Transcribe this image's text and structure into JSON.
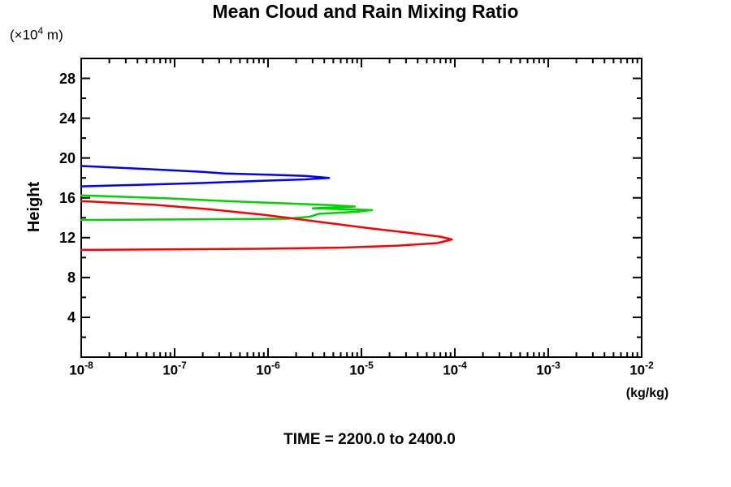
{
  "chart_data": {
    "type": "line",
    "title": "Mean Cloud and Rain Mixing Ratio",
    "ylabel": "Height",
    "y_unit": {
      "prefix": "(×10",
      "exp": "4",
      "suffix": " m)"
    },
    "xlabel": "(kg/kg)",
    "annotation": "TIME = 2200.0 to 2400.0",
    "x_scale": "log",
    "xlim": [
      1e-08,
      0.01
    ],
    "ylim": [
      0,
      30
    ],
    "x_tick_exponents": [
      -8,
      -7,
      -6,
      -5,
      -4,
      -3,
      -2
    ],
    "y_major_ticks": [
      4,
      8,
      12,
      16,
      20,
      24,
      28
    ],
    "y_minor_step": 2,
    "grid": false,
    "legend": "none",
    "axis_color": "#000000",
    "series": [
      {
        "name": "blue-profile",
        "color": "#0000ff",
        "points_value_height": [
          [
            1e-08,
            19.2
          ],
          [
            5e-08,
            18.9
          ],
          [
            2e-07,
            18.6
          ],
          [
            3.5e-07,
            18.45
          ],
          [
            1.2e-06,
            18.3
          ],
          [
            2.5e-06,
            18.2
          ],
          [
            4.5e-06,
            18.0
          ],
          [
            2.5e-06,
            17.85
          ],
          [
            8e-07,
            17.7
          ],
          [
            1.5e-07,
            17.45
          ],
          [
            4e-08,
            17.3
          ],
          [
            1e-08,
            17.15
          ]
        ]
      },
      {
        "name": "green-profile",
        "color": "#00d400",
        "points_value_height": [
          [
            1e-08,
            16.25
          ],
          [
            8e-08,
            15.95
          ],
          [
            4e-07,
            15.65
          ],
          [
            1.5e-06,
            15.45
          ],
          [
            5e-06,
            15.25
          ],
          [
            8.5e-06,
            15.12
          ],
          [
            3e-06,
            14.95
          ],
          [
            1.3e-05,
            14.78
          ],
          [
            9e-06,
            14.6
          ],
          [
            3.5e-06,
            14.4
          ],
          [
            2.8e-06,
            14.1
          ],
          [
            1.6e-06,
            13.9
          ],
          [
            1e-08,
            13.78
          ]
        ]
      },
      {
        "name": "red-profile",
        "color": "#ff0000",
        "points_value_height": [
          [
            1e-08,
            15.68
          ],
          [
            6e-08,
            15.3
          ],
          [
            2.2e-07,
            14.88
          ],
          [
            9e-07,
            14.3
          ],
          [
            3.5e-06,
            13.6
          ],
          [
            1.2e-05,
            12.95
          ],
          [
            3.5e-05,
            12.45
          ],
          [
            7e-05,
            12.1
          ],
          [
            9.3e-05,
            11.82
          ],
          [
            6.5e-05,
            11.45
          ],
          [
            2.5e-05,
            11.2
          ],
          [
            6e-06,
            11.0
          ],
          [
            8e-07,
            10.88
          ],
          [
            1e-08,
            10.77
          ]
        ]
      }
    ]
  }
}
